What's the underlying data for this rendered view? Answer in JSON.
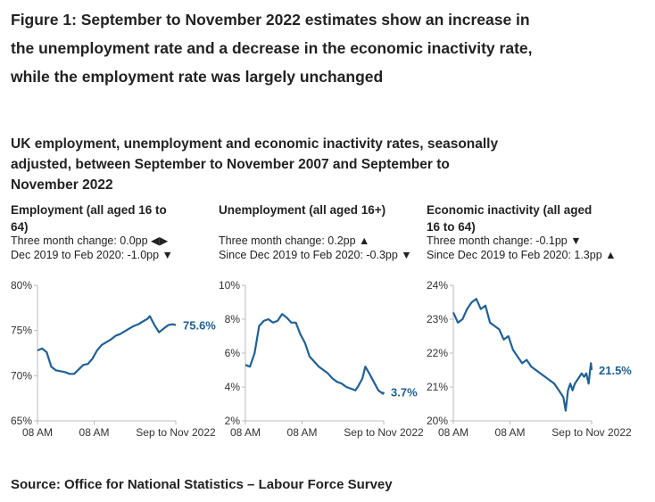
{
  "figure": {
    "title": "Figure 1: September to November 2022 estimates show an increase in the unemployment rate and a decrease in the economic inactivity rate, while the employment rate was largely unchanged",
    "subtitle": "UK employment, unemployment and economic inactivity rates, seasonally adjusted, between September to November 2007 and September to November 2022",
    "source": "Source: Office for National Statistics – Labour Force Survey"
  },
  "colors": {
    "line": "#206095",
    "axis": "#bbbbbb",
    "text": "#222222"
  },
  "panels": [
    {
      "title": "Employment (all aged 16 to 64)",
      "change_line": "Three month change: 0.0pp ◀▶",
      "since_line": "Dec 2019 to Feb 2020: -1.0pp ▼",
      "end_label": "75.6%"
    },
    {
      "title": "Unemployment (all aged 16+)",
      "change_line": "Three month change: 0.2pp ▲",
      "since_line": "Since Dec 2019 to Feb 2020: -0.3pp ▼",
      "end_label": "3.7%"
    },
    {
      "title": "Economic inactivity (all aged 16 to 64)",
      "change_line": "Three month change: -0.1pp ▼",
      "since_line": "Since Dec 2019 to Feb 2020: 1.3pp ▲",
      "end_label": "21.5%"
    }
  ],
  "chart_data": [
    {
      "type": "line",
      "title": "Employment (all aged 16 to 64)",
      "ylim": [
        65,
        80
      ],
      "yticks": [
        65,
        70,
        75,
        80
      ],
      "ytick_labels": [
        "65%",
        "70%",
        "75%",
        "80%"
      ],
      "xlim": [
        2007.75,
        2022.83
      ],
      "xtick_labels": [
        "08 AM",
        "08 AM",
        "Sep to Nov 2022"
      ],
      "end_label": "75.6%",
      "series": [
        {
          "name": "Employment rate",
          "x": [
            2007.75,
            2008.25,
            2008.75,
            2009.25,
            2009.75,
            2010.25,
            2010.75,
            2011.25,
            2011.75,
            2012.25,
            2012.75,
            2013.25,
            2013.75,
            2014.25,
            2014.75,
            2015.25,
            2015.75,
            2016.25,
            2016.75,
            2017.25,
            2017.75,
            2018.25,
            2018.75,
            2019.25,
            2019.75,
            2020.0,
            2020.5,
            2021.0,
            2021.5,
            2022.0,
            2022.5,
            2022.83
          ],
          "values": [
            72.8,
            73.0,
            72.6,
            71.0,
            70.6,
            70.5,
            70.4,
            70.2,
            70.2,
            70.7,
            71.2,
            71.3,
            71.9,
            72.8,
            73.4,
            73.7,
            74.0,
            74.4,
            74.6,
            74.9,
            75.2,
            75.5,
            75.7,
            76.0,
            76.3,
            76.6,
            75.6,
            74.8,
            75.2,
            75.6,
            75.7,
            75.6
          ]
        }
      ]
    },
    {
      "type": "line",
      "title": "Unemployment (all aged 16+)",
      "ylim": [
        2,
        10
      ],
      "yticks": [
        2,
        4,
        6,
        8,
        10
      ],
      "ytick_labels": [
        "2%",
        "4%",
        "6%",
        "8%",
        "10%"
      ],
      "xlim": [
        2007.75,
        2022.83
      ],
      "xtick_labels": [
        "08 AM",
        "08 AM",
        "Sep to Nov 2022"
      ],
      "end_label": "3.7%",
      "series": [
        {
          "name": "Unemployment rate",
          "x": [
            2007.75,
            2008.25,
            2008.75,
            2009.25,
            2009.75,
            2010.25,
            2010.75,
            2011.25,
            2011.75,
            2012.25,
            2012.75,
            2013.25,
            2013.75,
            2014.25,
            2014.75,
            2015.25,
            2015.75,
            2016.25,
            2016.75,
            2017.25,
            2017.75,
            2018.25,
            2018.75,
            2019.25,
            2019.75,
            2020.0,
            2020.5,
            2020.83,
            2021.25,
            2021.75,
            2022.25,
            2022.75,
            2022.83
          ],
          "values": [
            5.3,
            5.2,
            6.0,
            7.6,
            7.9,
            8.0,
            7.8,
            7.9,
            8.3,
            8.1,
            7.8,
            7.8,
            7.1,
            6.6,
            5.8,
            5.5,
            5.2,
            5.0,
            4.8,
            4.5,
            4.3,
            4.2,
            4.0,
            3.9,
            3.8,
            4.0,
            4.5,
            5.2,
            4.8,
            4.3,
            3.8,
            3.6,
            3.7
          ]
        }
      ]
    },
    {
      "type": "line",
      "title": "Economic inactivity (all aged 16 to 64)",
      "ylim": [
        20,
        24
      ],
      "yticks": [
        20,
        21,
        22,
        23,
        24
      ],
      "ytick_labels": [
        "20%",
        "21%",
        "22%",
        "23%",
        "24%"
      ],
      "xlim": [
        2007.75,
        2022.83
      ],
      "xtick_labels": [
        "08 AM",
        "08 AM",
        "Sep to Nov 2022"
      ],
      "end_label": "21.5%",
      "series": [
        {
          "name": "Economic inactivity rate",
          "x": [
            2007.75,
            2008.25,
            2008.75,
            2009.25,
            2009.75,
            2010.25,
            2010.75,
            2011.25,
            2011.75,
            2012.25,
            2012.75,
            2013.25,
            2013.75,
            2014.25,
            2014.75,
            2015.25,
            2015.75,
            2016.25,
            2016.75,
            2017.25,
            2017.75,
            2018.25,
            2018.75,
            2019.25,
            2019.75,
            2020.0,
            2020.25,
            2020.5,
            2020.75,
            2021.0,
            2021.25,
            2021.75,
            2022.0,
            2022.25,
            2022.5,
            2022.75,
            2022.83
          ],
          "values": [
            23.2,
            22.9,
            23.0,
            23.3,
            23.5,
            23.6,
            23.3,
            23.4,
            22.9,
            22.8,
            22.7,
            22.4,
            22.5,
            22.1,
            21.9,
            21.7,
            21.8,
            21.6,
            21.5,
            21.4,
            21.3,
            21.2,
            21.1,
            20.9,
            20.7,
            20.3,
            20.9,
            21.1,
            20.9,
            21.1,
            21.2,
            21.4,
            21.3,
            21.4,
            21.1,
            21.7,
            21.5
          ]
        }
      ]
    }
  ]
}
